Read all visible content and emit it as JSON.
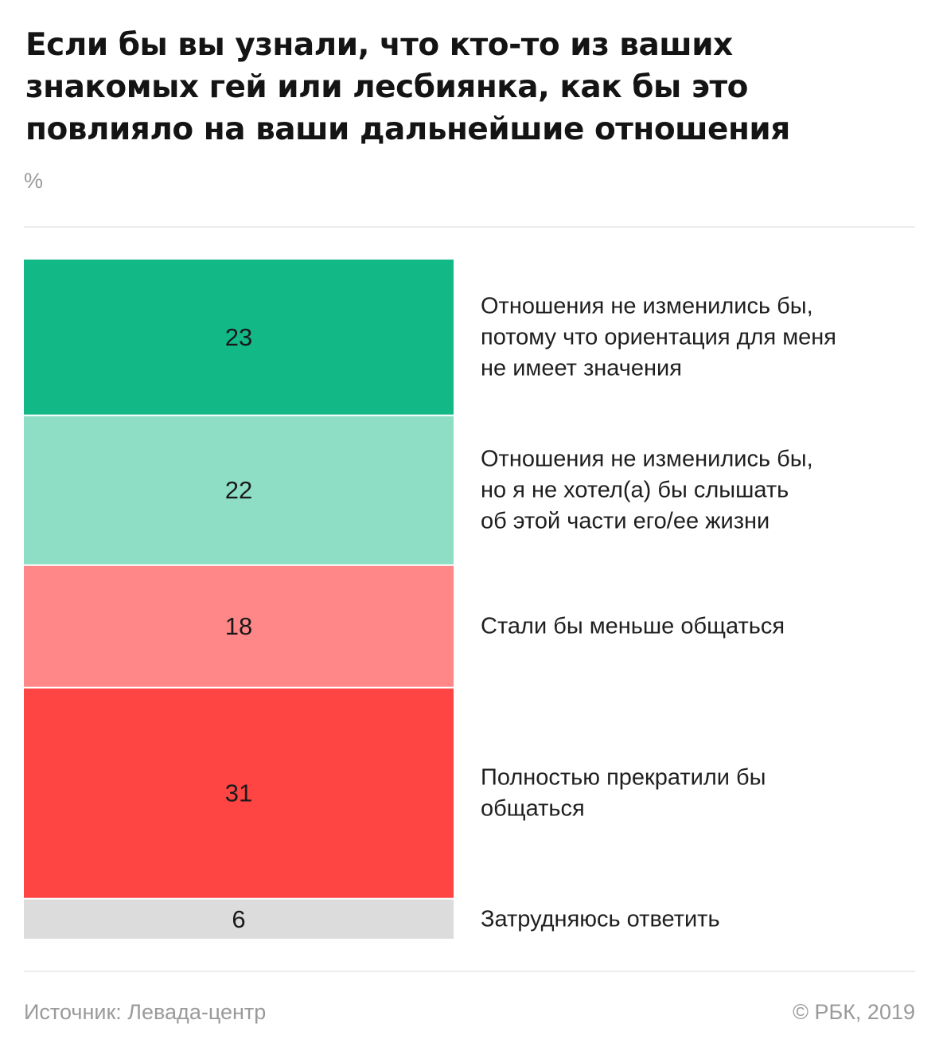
{
  "header": {
    "title": "Если бы вы узнали, что кто-то из ваших знакомых гей или лесбиянка, как бы это повлияло на ваши дальнейшие отношения",
    "unit": "%"
  },
  "footer": {
    "source": "Источник: Левада-центр",
    "copyright": "© РБК, 2019"
  },
  "chart_data": {
    "type": "bar",
    "stacked": true,
    "orientation": "vertical-stack",
    "title": "Если бы вы узнали, что кто-то из ваших знакомых гей или лесбиянка, как бы это повлияло на ваши дальнейшие отношения",
    "unit": "%",
    "categories": [
      "Отношения не изменились бы, потому что ориентация для меня не имеет значения",
      "Отношения не изменились бы, но я не хотел(а) бы слышать об этой части его/ее жизни",
      "Стали бы меньше общаться",
      "Полностью прекратили бы общаться",
      "Затрудняюсь ответить"
    ],
    "values": [
      23,
      22,
      18,
      31,
      6
    ],
    "label_lines": [
      [
        "Отношения не изменились бы,",
        "потому что ориентация для меня",
        "не имеет значения"
      ],
      [
        "Отношения не изменились бы,",
        "но я не хотел(а) бы слышать",
        "об этой части его/ее жизни"
      ],
      [
        "Стали бы меньше общаться"
      ],
      [
        "Полностью прекратили бы",
        "общаться"
      ],
      [
        "Затрудняюсь ответить"
      ]
    ],
    "colors": [
      "#13b887",
      "#8ddec4",
      "#ff8788",
      "#ff4444",
      "#dcdcdc"
    ],
    "legend": "right"
  }
}
